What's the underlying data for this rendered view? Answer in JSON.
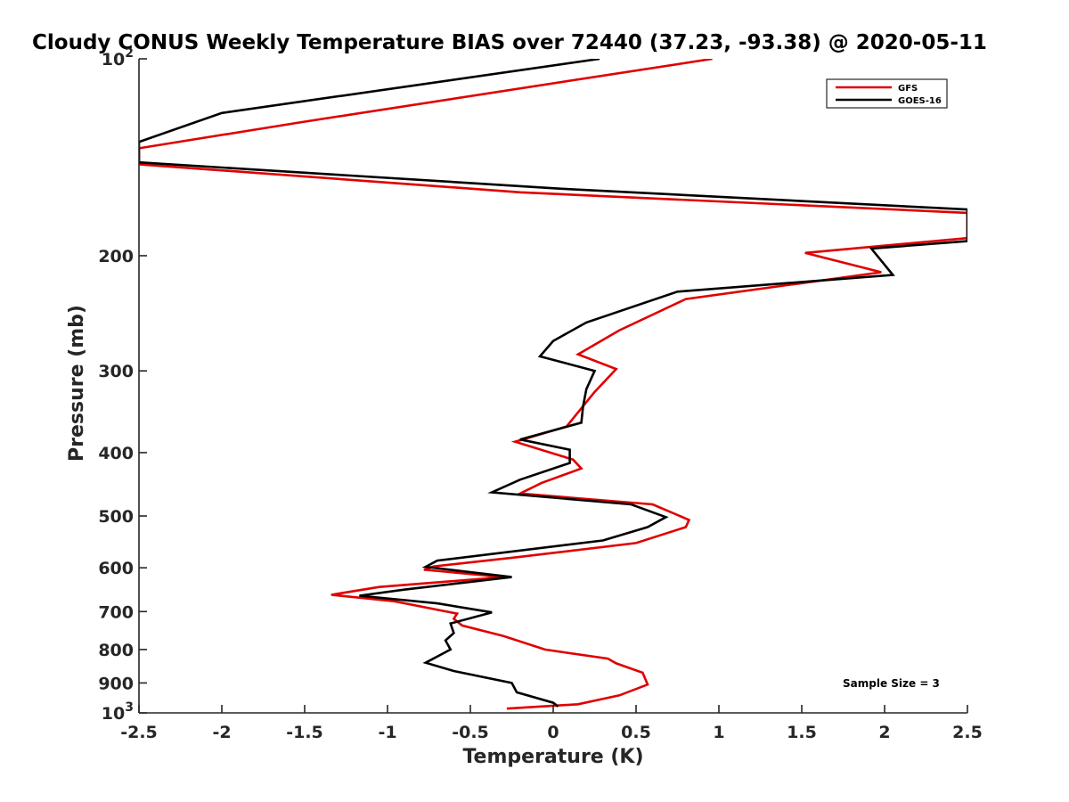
{
  "chart_data": {
    "type": "line",
    "title": "Cloudy CONUS Weekly Temperature BIAS over 72440 (37.23, -93.38) @ 2020-05-11",
    "xlabel": "Temperature (K)",
    "ylabel": "Pressure (mb)",
    "xlim": [
      -2.5,
      2.5
    ],
    "ylim": [
      100,
      1000
    ],
    "yscale": "log",
    "y_reversed": true,
    "grid": false,
    "legend_position": "top-right",
    "x_ticks": [
      -2.5,
      -2,
      -1.5,
      -1,
      -0.5,
      0,
      0.5,
      1,
      1.5,
      2,
      2.5
    ],
    "x_tick_labels": [
      "-2.5",
      "-2",
      "-1.5",
      "-1",
      "-0.5",
      "0",
      "0.5",
      "1",
      "1.5",
      "2",
      "2.5"
    ],
    "y_ticks": [
      100,
      200,
      300,
      400,
      500,
      600,
      700,
      800,
      900,
      1000
    ],
    "y_tick_labels": [
      {
        "base": "10",
        "exp": "2"
      },
      {
        "base": "200",
        "exp": ""
      },
      {
        "base": "300",
        "exp": ""
      },
      {
        "base": "400",
        "exp": ""
      },
      {
        "base": "500",
        "exp": ""
      },
      {
        "base": "600",
        "exp": ""
      },
      {
        "base": "700",
        "exp": ""
      },
      {
        "base": "800",
        "exp": ""
      },
      {
        "base": "900",
        "exp": ""
      },
      {
        "base": "10",
        "exp": "3"
      }
    ],
    "annotation": "Sample Size = 3",
    "series": [
      {
        "name": "GFS",
        "color": "#e00000",
        "points": [
          [
            0.96,
            100
          ],
          [
            -1.52,
            125
          ],
          [
            -2.5,
            137
          ],
          [
            -2.5,
            145
          ],
          [
            -0.2,
            160
          ],
          [
            2.5,
            172
          ],
          [
            2.5,
            188
          ],
          [
            1.52,
            198
          ],
          [
            1.98,
            212
          ],
          [
            0.8,
            233
          ],
          [
            0.4,
            260
          ],
          [
            0.15,
            283
          ],
          [
            0.38,
            298
          ],
          [
            0.25,
            323
          ],
          [
            0.08,
            365
          ],
          [
            -0.23,
            385
          ],
          [
            0.12,
            410
          ],
          [
            0.17,
            423
          ],
          [
            -0.07,
            445
          ],
          [
            -0.2,
            462
          ],
          [
            0.6,
            480
          ],
          [
            0.82,
            507
          ],
          [
            0.8,
            520
          ],
          [
            0.5,
            550
          ],
          [
            -0.22,
            578
          ],
          [
            -0.72,
            597
          ],
          [
            -0.78,
            604
          ],
          [
            -0.3,
            620
          ],
          [
            -1.05,
            642
          ],
          [
            -1.34,
            660
          ],
          [
            -0.96,
            675
          ],
          [
            -0.58,
            705
          ],
          [
            -0.6,
            718
          ],
          [
            -0.55,
            735
          ],
          [
            -0.3,
            763
          ],
          [
            -0.05,
            800
          ],
          [
            0.33,
            826
          ],
          [
            0.38,
            840
          ],
          [
            0.54,
            868
          ],
          [
            0.57,
            905
          ],
          [
            0.4,
            940
          ],
          [
            0.15,
            970
          ],
          [
            -0.28,
            985
          ]
        ]
      },
      {
        "name": "GOES-16",
        "color": "#000000",
        "points": [
          [
            0.28,
            100
          ],
          [
            -2.0,
            121
          ],
          [
            -2.5,
            134
          ],
          [
            -2.5,
            144
          ],
          [
            0.05,
            158
          ],
          [
            2.5,
            170
          ],
          [
            2.5,
            190
          ],
          [
            1.92,
            195
          ],
          [
            2.05,
            214
          ],
          [
            0.75,
            227
          ],
          [
            0.2,
            253
          ],
          [
            0.0,
            270
          ],
          [
            -0.08,
            285
          ],
          [
            0.25,
            300
          ],
          [
            0.2,
            320
          ],
          [
            0.18,
            340
          ],
          [
            0.17,
            360
          ],
          [
            -0.2,
            382
          ],
          [
            0.1,
            396
          ],
          [
            0.1,
            415
          ],
          [
            -0.2,
            440
          ],
          [
            -0.37,
            460
          ],
          [
            0.47,
            480
          ],
          [
            0.68,
            502
          ],
          [
            0.57,
            520
          ],
          [
            0.3,
            545
          ],
          [
            -0.7,
            585
          ],
          [
            -0.77,
            598
          ],
          [
            -0.25,
            620
          ],
          [
            -0.9,
            648
          ],
          [
            -1.17,
            662
          ],
          [
            -0.7,
            680
          ],
          [
            -0.37,
            702
          ],
          [
            -0.62,
            730
          ],
          [
            -0.6,
            755
          ],
          [
            -0.65,
            775
          ],
          [
            -0.62,
            800
          ],
          [
            -0.77,
            838
          ],
          [
            -0.6,
            863
          ],
          [
            -0.25,
            900
          ],
          [
            -0.22,
            930
          ],
          [
            0.0,
            965
          ],
          [
            0.03,
            978
          ]
        ]
      }
    ]
  }
}
